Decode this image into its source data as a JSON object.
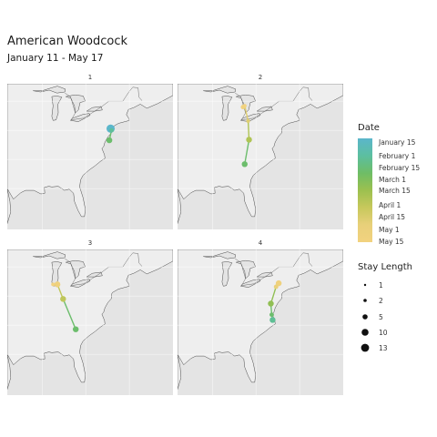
{
  "title": "American Woodcock",
  "subtitle": "January 11 - May 17",
  "panels": [
    {
      "label": "1",
      "track": [
        {
          "lon": -74.3,
          "lat": 40.3,
          "date": "Jan 11",
          "stay": 13
        },
        {
          "lon": -74.1,
          "lat": 40.0,
          "date": "Feb 3",
          "stay": 2
        },
        {
          "lon": -74.6,
          "lat": 38.3,
          "date": "Feb 20",
          "stay": 5
        }
      ]
    },
    {
      "label": "2",
      "track": [
        {
          "lon": -83.0,
          "lat": 44.0,
          "date": "May 15",
          "stay": 2
        },
        {
          "lon": -82.6,
          "lat": 44.2,
          "date": "May 17",
          "stay": 1
        },
        {
          "lon": -81.8,
          "lat": 41.6,
          "date": "Apr 20",
          "stay": 1
        },
        {
          "lon": -81.6,
          "lat": 38.4,
          "date": "Mar 25",
          "stay": 5
        },
        {
          "lon": -82.6,
          "lat": 34.2,
          "date": "Feb 20",
          "stay": 5
        }
      ]
    },
    {
      "label": "3",
      "track": [
        {
          "lon": -87.5,
          "lat": 42.0,
          "date": "May 17",
          "stay": 1
        },
        {
          "lon": -86.5,
          "lat": 42.0,
          "date": "May 10",
          "stay": 5
        },
        {
          "lon": -85.2,
          "lat": 39.5,
          "date": "Apr 1",
          "stay": 5
        },
        {
          "lon": -82.3,
          "lat": 34.3,
          "date": "Feb 20",
          "stay": 5
        }
      ]
    },
    {
      "label": "4",
      "track": [
        {
          "lon": -74.8,
          "lat": 42.2,
          "date": "May 10",
          "stay": 5
        },
        {
          "lon": -75.4,
          "lat": 41.6,
          "date": "May 1",
          "stay": 2
        },
        {
          "lon": -76.6,
          "lat": 38.7,
          "date": "Mar 10",
          "stay": 5
        },
        {
          "lon": -76.4,
          "lat": 36.8,
          "date": "Feb 20",
          "stay": 2
        },
        {
          "lon": -76.2,
          "lat": 35.9,
          "date": "Feb 5",
          "stay": 5
        }
      ]
    }
  ],
  "legend_date": {
    "title": "Date",
    "labels": [
      "January 15",
      "February 1",
      "February 15",
      "March 1",
      "March 15",
      "April 1",
      "April 15",
      "May 1",
      "May 15"
    ]
  },
  "legend_stay": {
    "title": "Stay Length",
    "labels": [
      "1",
      "2",
      "5",
      "10",
      "13"
    ],
    "values": [
      1,
      2,
      5,
      10,
      13
    ]
  },
  "colors": {
    "panel_bg": "#e4e4e4",
    "land_light": "#eeeeee",
    "coast": "#4a4a4a",
    "scale": [
      "#5bb6cb",
      "#5cbfa0",
      "#6ebd66",
      "#9cc04f",
      "#c7c85c",
      "#e8d07a",
      "#f2d27f"
    ]
  }
}
